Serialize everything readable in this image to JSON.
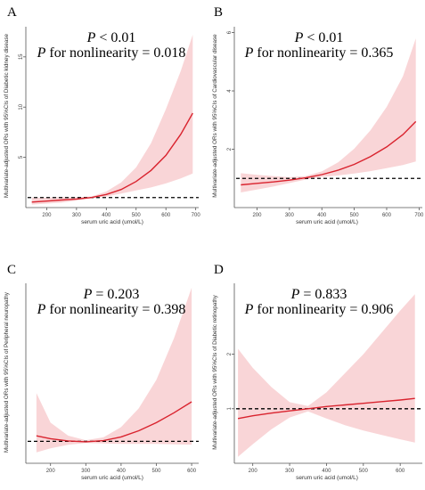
{
  "chart_data": [
    {
      "type": "line",
      "panel_label": "A",
      "p_label": "P",
      "p_text": " < 0.01",
      "nl_label": "P",
      "nl_text": " for nonlinearity = 0.018",
      "xlabel": "serum uric acid (umol/L)",
      "ylabel": "Multivariate-adjusted ORs with 95%CIs of Diabetic kidney disease",
      "xlim": [
        130,
        710
      ],
      "ylim": [
        0,
        18
      ],
      "xticks": [
        200,
        300,
        400,
        500,
        600,
        700
      ],
      "yticks": [
        5,
        10,
        15
      ],
      "reference_line": 1,
      "colors": {
        "line": "#d9232e",
        "band": "#f9d5d7",
        "ref": "#000000"
      },
      "series": [
        {
          "x": [
            150,
            200,
            250,
            300,
            350,
            400,
            450,
            500,
            550,
            600,
            650,
            690
          ],
          "or": [
            0.55,
            0.65,
            0.75,
            0.85,
            1.0,
            1.3,
            1.8,
            2.6,
            3.7,
            5.2,
            7.3,
            9.4
          ],
          "lower": [
            0.3,
            0.4,
            0.5,
            0.7,
            0.92,
            1.1,
            1.4,
            1.7,
            2.0,
            2.4,
            2.9,
            3.4
          ],
          "upper": [
            1.0,
            1.0,
            1.05,
            1.05,
            1.1,
            1.6,
            2.5,
            4.0,
            6.4,
            9.8,
            13.6,
            17.2
          ]
        }
      ]
    },
    {
      "type": "line",
      "panel_label": "B",
      "p_label": "P",
      "p_text": " < 0.01",
      "nl_label": "P",
      "nl_text": " for nonlinearity = 0.365",
      "xlabel": "serum uric acid (umol/L)",
      "ylabel": "Multivariate-adjusted ORs with 95%CIs of Cardiovascular disease",
      "xlim": [
        130,
        710
      ],
      "ylim": [
        0,
        6.2
      ],
      "xticks": [
        200,
        300,
        400,
        500,
        600,
        700
      ],
      "yticks": [
        2,
        4,
        6
      ],
      "reference_line": 1,
      "colors": {
        "line": "#d9232e",
        "band": "#f9d5d7",
        "ref": "#000000"
      },
      "series": [
        {
          "x": [
            150,
            200,
            250,
            300,
            350,
            400,
            450,
            500,
            550,
            600,
            650,
            690
          ],
          "or": [
            0.78,
            0.83,
            0.88,
            0.94,
            1.02,
            1.13,
            1.28,
            1.48,
            1.75,
            2.08,
            2.5,
            2.95
          ],
          "lower": [
            0.52,
            0.62,
            0.72,
            0.84,
            0.96,
            1.05,
            1.1,
            1.17,
            1.25,
            1.35,
            1.46,
            1.58
          ],
          "upper": [
            1.18,
            1.12,
            1.08,
            1.04,
            1.08,
            1.24,
            1.55,
            2.02,
            2.65,
            3.45,
            4.5,
            5.8
          ]
        }
      ]
    },
    {
      "type": "line",
      "panel_label": "C",
      "p_label": "P",
      "p_text": " = 0.203",
      "nl_label": "P",
      "nl_text": " for nonlinearity = 0.398",
      "xlabel": "serum uric acid (umol/L)",
      "ylabel": "Multivariate-adjusted ORs with 95%CIs of Peripheral neuropathy",
      "xlim": [
        130,
        620
      ],
      "ylim": [
        0,
        8.2
      ],
      "xticks": [
        200,
        300,
        400,
        500,
        600
      ],
      "yticks": [],
      "reference_line": 1,
      "colors": {
        "line": "#d9232e",
        "band": "#f9d5d7",
        "ref": "#000000"
      },
      "series": [
        {
          "x": [
            160,
            200,
            250,
            300,
            350,
            400,
            450,
            500,
            550,
            600
          ],
          "or": [
            1.25,
            1.12,
            1.02,
            0.98,
            1.03,
            1.2,
            1.48,
            1.85,
            2.3,
            2.8
          ],
          "lower": [
            0.5,
            0.68,
            0.84,
            0.92,
            0.9,
            0.88,
            0.88,
            0.88,
            0.86,
            0.85
          ],
          "upper": [
            3.2,
            1.85,
            1.26,
            1.05,
            1.18,
            1.65,
            2.5,
            3.8,
            5.7,
            8.0
          ]
        }
      ]
    },
    {
      "type": "line",
      "panel_label": "D",
      "p_label": "P",
      "p_text": " = 0.833",
      "nl_label": "P",
      "nl_text": " for nonlinearity = 0.906",
      "xlabel": "serum uric acid (umol/L)",
      "ylabel": "Multivariate-adjusted ORs with 95%CIs of Diabetic retinopathy",
      "xlim": [
        150,
        660
      ],
      "ylim": [
        0,
        3.3
      ],
      "xticks": [
        200,
        300,
        400,
        500,
        600
      ],
      "yticks": [
        1,
        2
      ],
      "reference_line": 1,
      "colors": {
        "line": "#d9232e",
        "band": "#f9d5d7",
        "ref": "#000000"
      },
      "series": [
        {
          "x": [
            160,
            200,
            250,
            300,
            350,
            400,
            450,
            500,
            550,
            600,
            640
          ],
          "or": [
            0.82,
            0.87,
            0.92,
            0.96,
            1.0,
            1.04,
            1.07,
            1.1,
            1.13,
            1.16,
            1.19
          ],
          "lower": [
            0.12,
            0.35,
            0.62,
            0.84,
            0.95,
            0.82,
            0.7,
            0.6,
            0.52,
            0.44,
            0.38
          ],
          "upper": [
            2.1,
            1.75,
            1.4,
            1.12,
            1.05,
            1.3,
            1.65,
            2.0,
            2.4,
            2.8,
            3.1
          ]
        }
      ]
    }
  ]
}
